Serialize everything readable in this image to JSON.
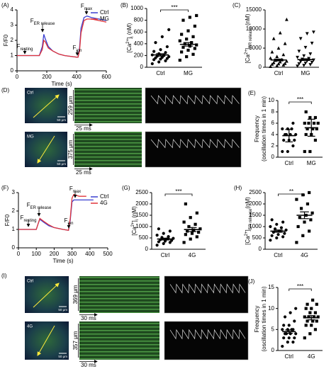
{
  "chart_data": [
    {
      "type": "line",
      "panel": "(A)",
      "xlabel": "Time (s)",
      "ylabel": [
        [
          {
            "text": "F/F0"
          }
        ]
      ],
      "x": [
        0,
        50,
        100,
        150,
        170,
        180,
        190,
        210,
        240,
        280,
        320,
        360,
        400,
        410,
        420,
        430,
        450,
        470,
        500,
        550,
        600
      ],
      "series": [
        {
          "name": "Ctrl",
          "color": "#3a3fd0",
          "values": [
            1,
            1,
            1,
            1,
            1.6,
            2.4,
            2.1,
            1.6,
            1.3,
            1.1,
            1.0,
            0.95,
            0.9,
            0.9,
            1.5,
            2.8,
            3.5,
            3.6,
            3.5,
            3.4,
            3.3
          ]
        },
        {
          "name": "MG",
          "color": "#e0343a",
          "values": [
            1,
            1,
            1,
            1,
            1.4,
            2.0,
            1.9,
            1.5,
            1.3,
            1.1,
            1.0,
            0.95,
            0.9,
            0.9,
            1.3,
            2.5,
            3.3,
            3.4,
            3.4,
            3.3,
            3.2
          ]
        }
      ],
      "xlim": [
        0,
        600
      ],
      "xticks": [
        0,
        200,
        400,
        600
      ],
      "ylim": [
        0,
        4
      ],
      "yticks": [
        0,
        1,
        2,
        3,
        4
      ],
      "legend": "upper right",
      "annotations": [
        {
          "main": "F",
          "sub": "resting"
        },
        {
          "main": "F",
          "sub": "ER release"
        },
        {
          "main": "F",
          "sub": "ion"
        },
        {
          "main": "F",
          "sub": "max"
        }
      ]
    },
    {
      "type": "dotplot",
      "panel": "(B)",
      "ylabel": [
        [
          {
            "text": "[Ca"
          },
          {
            "text": "2+",
            "shift": "super"
          },
          {
            "text": "]"
          },
          {
            "text": "i",
            "shift": "sub"
          },
          {
            "text": " (nM)"
          }
        ]
      ],
      "ylim": [
        0,
        1000
      ],
      "yticks": [
        0,
        200,
        400,
        600,
        800,
        1000
      ],
      "significance": "***",
      "groups": [
        {
          "name": "Ctrl",
          "marker": "circle",
          "values": [
            60,
            90,
            110,
            130,
            140,
            150,
            160,
            170,
            180,
            190,
            200,
            210,
            230,
            250,
            270,
            300,
            350,
            420,
            520,
            640
          ],
          "mean": 210,
          "error": 20
        },
        {
          "name": "MG",
          "marker": "square",
          "values": [
            120,
            180,
            220,
            260,
            290,
            320,
            340,
            360,
            380,
            400,
            420,
            450,
            480,
            520,
            560,
            620,
            700,
            800,
            850,
            880
          ],
          "mean": 390,
          "error": 30
        }
      ]
    },
    {
      "type": "dotplot",
      "panel": "(C)",
      "ylabel": [
        [
          {
            "text": "[Ca"
          },
          {
            "text": "2+",
            "shift": "super"
          },
          {
            "text": "]"
          },
          {
            "text": "ER release",
            "shift": "sub"
          },
          {
            "text": " (nM)"
          }
        ]
      ],
      "ylim": [
        0,
        15000
      ],
      "yticks": [
        0,
        5000,
        10000,
        15000
      ],
      "groups": [
        {
          "name": "Ctrl",
          "marker": "triangle",
          "values": [
            200,
            400,
            600,
            800,
            900,
            1000,
            1200,
            1400,
            1600,
            1800,
            2000,
            2400,
            2800,
            3300,
            4000,
            5000,
            6200,
            7500,
            9000,
            12500
          ],
          "mean": 1900,
          "error": 250
        },
        {
          "name": "MG",
          "marker": "diamond",
          "values": [
            300,
            500,
            700,
            900,
            1100,
            1300,
            1500,
            1700,
            1900,
            2100,
            2300,
            2600,
            3000,
            3500,
            4200,
            5200,
            6300,
            7500,
            8800,
            9200
          ],
          "mean": 2000,
          "error": 220
        }
      ]
    },
    {
      "type": "dotplot",
      "panel": "(E)",
      "ylabel": [
        [
          {
            "text": "Frequency"
          }
        ],
        [
          {
            "text": "(oscillation times in 1 min)"
          }
        ]
      ],
      "ylim": [
        0,
        10
      ],
      "yticks": [
        0,
        2,
        4,
        6,
        8,
        10
      ],
      "significance": "***",
      "groups": [
        {
          "name": "Ctrl",
          "marker": "circle",
          "values": [
            1,
            1,
            2,
            3,
            3,
            3,
            4,
            4,
            4,
            4,
            5,
            5,
            5,
            6
          ],
          "mean": 3.8,
          "error": 1.1
        },
        {
          "name": "MG",
          "marker": "square",
          "values": [
            1,
            1,
            3,
            4,
            4,
            5,
            5,
            5,
            6,
            6,
            6,
            6,
            7,
            7,
            8
          ],
          "mean": 5.2,
          "error": 1.5
        }
      ]
    },
    {
      "type": "line",
      "panel": "(F)",
      "xlabel": "Time (s)",
      "ylabel": [
        [
          {
            "text": "F/F0"
          }
        ]
      ],
      "x": [
        0,
        50,
        100,
        110,
        120,
        140,
        170,
        200,
        250,
        280,
        290,
        300,
        310,
        340,
        380,
        420
      ],
      "series": [
        {
          "name": "Ctrl",
          "color": "#3a3fd0",
          "values": [
            1,
            1,
            1,
            1.3,
            1.55,
            1.4,
            1.2,
            1.1,
            1.0,
            0.95,
            1.5,
            2.5,
            2.6,
            2.6,
            2.6,
            2.6
          ]
        },
        {
          "name": "4G",
          "color": "#e0343a",
          "values": [
            1,
            1,
            1,
            1.3,
            1.6,
            1.45,
            1.25,
            1.1,
            1.0,
            0.95,
            1.6,
            2.7,
            2.9,
            2.8,
            2.8,
            null
          ]
        }
      ],
      "xlim": [
        0,
        500
      ],
      "xticks": [
        0,
        100,
        200,
        300,
        400,
        500
      ],
      "ylim": [
        0,
        3
      ],
      "yticks": [
        0,
        1,
        2,
        3
      ],
      "legend": "upper right",
      "annotations": [
        {
          "main": "F",
          "sub": "resting"
        },
        {
          "main": "F",
          "sub": "ER release"
        },
        {
          "main": "F",
          "sub": "ion"
        },
        {
          "main": "F",
          "sub": "max"
        }
      ]
    },
    {
      "type": "dotplot",
      "panel": "(G)",
      "ylabel": [
        [
          {
            "text": "[Ca"
          },
          {
            "text": "2+",
            "shift": "super"
          },
          {
            "text": "]"
          },
          {
            "text": "i",
            "shift": "sub"
          },
          {
            "text": " (nM)"
          }
        ]
      ],
      "ylim": [
        0,
        2500
      ],
      "yticks": [
        0,
        500,
        1000,
        1500,
        2000,
        2500
      ],
      "significance": "***",
      "groups": [
        {
          "name": "Ctrl",
          "marker": "circle",
          "values": [
            180,
            250,
            300,
            330,
            360,
            390,
            420,
            450,
            480,
            520,
            560,
            620,
            700,
            800,
            900
          ],
          "mean": 450,
          "error": 40
        },
        {
          "name": "4G",
          "marker": "square",
          "values": [
            300,
            450,
            550,
            650,
            700,
            750,
            800,
            850,
            900,
            1000,
            1100,
            1200,
            1400,
            1600,
            2000
          ],
          "mean": 870,
          "error": 90
        }
      ]
    },
    {
      "type": "dotplot",
      "panel": "(H)",
      "ylabel": [
        [
          {
            "text": "[Ca"
          },
          {
            "text": "2+",
            "shift": "super"
          },
          {
            "text": "]"
          },
          {
            "text": "ER release",
            "shift": "sub"
          },
          {
            "text": "(nM)"
          }
        ]
      ],
      "ylim": [
        0,
        2500
      ],
      "yticks": [
        0,
        500,
        1000,
        1500,
        2000,
        2500
      ],
      "significance": "**",
      "groups": [
        {
          "name": "Ctrl",
          "marker": "circle",
          "values": [
            400,
            500,
            550,
            600,
            650,
            700,
            750,
            800,
            850,
            900,
            950,
            1000,
            1100,
            1200,
            1300
          ],
          "mean": 800,
          "error": 50
        },
        {
          "name": "4G",
          "marker": "square",
          "values": [
            300,
            600,
            800,
            1000,
            1200,
            1300,
            1400,
            1500,
            1600,
            1800,
            2000,
            2200,
            2400,
            2500
          ],
          "mean": 1500,
          "error": 150
        }
      ]
    },
    {
      "type": "dotplot",
      "panel": "(J)",
      "ylabel": [
        [
          {
            "text": "Frequency"
          }
        ],
        [
          {
            "text": "(oscillation times in 1 min)"
          }
        ]
      ],
      "ylim": [
        0,
        15
      ],
      "yticks": [
        0,
        5,
        10,
        15
      ],
      "significance": "***",
      "groups": [
        {
          "name": "Ctrl",
          "marker": "circle",
          "values": [
            1,
            2,
            2,
            3,
            3,
            3,
            4,
            4,
            4,
            4,
            5,
            5,
            5,
            5,
            6,
            6,
            7,
            8,
            9,
            10
          ],
          "mean": 4.5,
          "error": 0.4
        },
        {
          "name": "4G",
          "marker": "square",
          "values": [
            3,
            4,
            5,
            6,
            6,
            7,
            7,
            7,
            8,
            8,
            8,
            8,
            9,
            9,
            10,
            10,
            11,
            11,
            12
          ],
          "mean": 7.8,
          "error": 0.5
        }
      ]
    }
  ],
  "image_panels": [
    {
      "label": "(D)",
      "rows": [
        {
          "condition": "Ctrl",
          "scale_bar": "50 μm",
          "length": "259 μm",
          "time": "25 ms"
        },
        {
          "condition": "MG",
          "scale_bar": "50 μm",
          "length": "375 μm",
          "time": "25 ms"
        }
      ]
    },
    {
      "label": "(I)",
      "rows": [
        {
          "condition": "Ctrl",
          "scale_bar": "50 μm",
          "length": "369 μm",
          "time": "30 ms"
        },
        {
          "condition": "4G",
          "scale_bar": "50 μm",
          "length": "357 μm",
          "time": "30 ms"
        }
      ]
    }
  ]
}
